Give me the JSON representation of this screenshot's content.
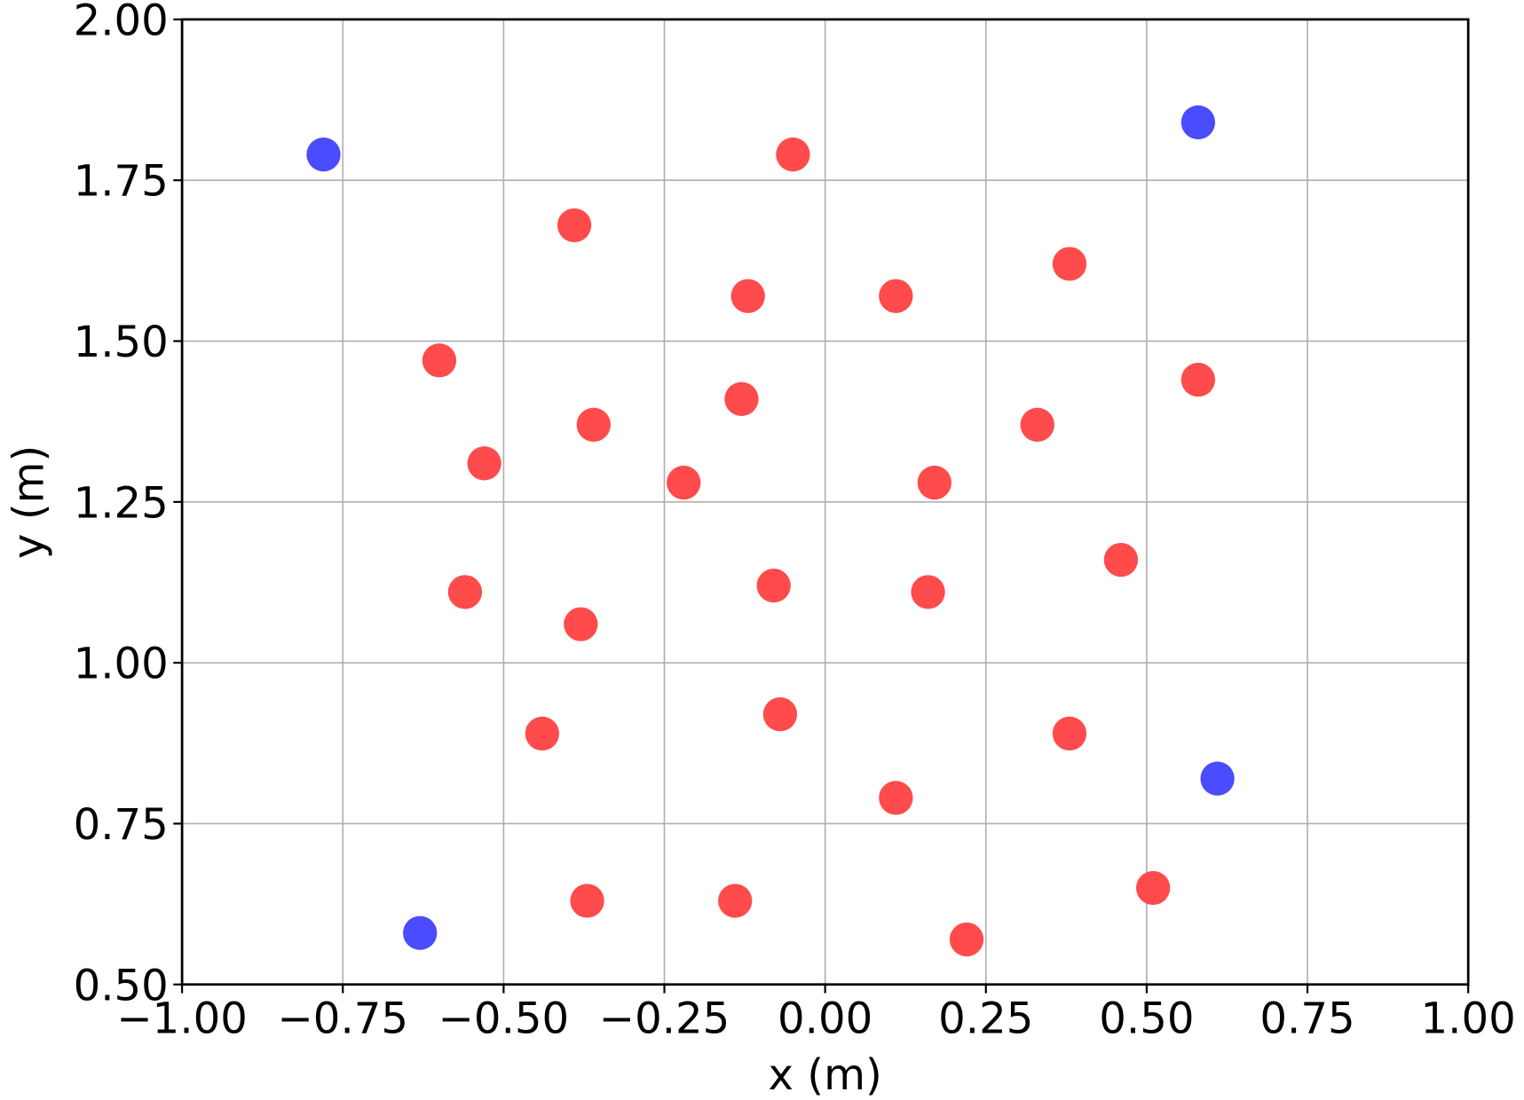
{
  "chart_data": {
    "type": "scatter",
    "title": "",
    "xlabel": "x (m)",
    "ylabel": "y (m)",
    "xlim": [
      -1.0,
      1.0
    ],
    "ylim": [
      0.5,
      2.0
    ],
    "grid": true,
    "xticks": [
      "−1.00",
      "−0.75",
      "−0.50",
      "−0.25",
      "0.00",
      "0.25",
      "0.50",
      "0.75",
      "1.00"
    ],
    "xtick_values": [
      -1.0,
      -0.75,
      -0.5,
      -0.25,
      0.0,
      0.25,
      0.5,
      0.75,
      1.0
    ],
    "yticks": [
      "0.50",
      "0.75",
      "1.00",
      "1.25",
      "1.50",
      "1.75",
      "2.00"
    ],
    "ytick_values": [
      0.5,
      0.75,
      1.0,
      1.25,
      1.5,
      1.75,
      2.0
    ],
    "series": [
      {
        "name": "blue",
        "color": "#4b4bff",
        "points": [
          [
            -0.78,
            1.79
          ],
          [
            0.58,
            1.84
          ],
          [
            0.61,
            0.82
          ],
          [
            -0.63,
            0.58
          ]
        ]
      },
      {
        "name": "red",
        "color": "#ff4b4b",
        "points": [
          [
            -0.05,
            1.79
          ],
          [
            -0.39,
            1.68
          ],
          [
            0.38,
            1.62
          ],
          [
            -0.12,
            1.57
          ],
          [
            0.11,
            1.57
          ],
          [
            -0.6,
            1.47
          ],
          [
            0.58,
            1.44
          ],
          [
            -0.13,
            1.41
          ],
          [
            -0.36,
            1.37
          ],
          [
            0.33,
            1.37
          ],
          [
            -0.53,
            1.31
          ],
          [
            -0.22,
            1.28
          ],
          [
            0.17,
            1.28
          ],
          [
            0.46,
            1.16
          ],
          [
            -0.56,
            1.11
          ],
          [
            -0.08,
            1.12
          ],
          [
            0.16,
            1.11
          ],
          [
            -0.38,
            1.06
          ],
          [
            -0.44,
            0.89
          ],
          [
            -0.07,
            0.92
          ],
          [
            0.38,
            0.89
          ],
          [
            0.11,
            0.79
          ],
          [
            -0.37,
            0.63
          ],
          [
            -0.14,
            0.63
          ],
          [
            0.51,
            0.65
          ],
          [
            0.22,
            0.57
          ]
        ]
      }
    ]
  }
}
